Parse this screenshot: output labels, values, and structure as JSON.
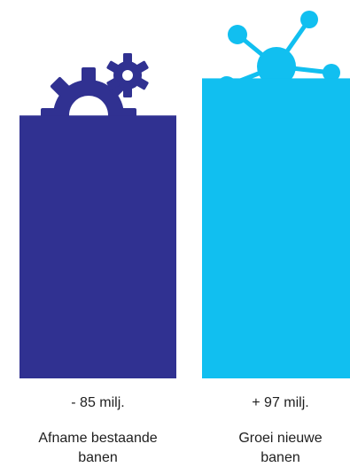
{
  "chart_data": {
    "type": "bar",
    "categories": [
      "Afname bestaande banen",
      "Groei nieuwe banen"
    ],
    "values": [
      85,
      97
    ],
    "value_labels": [
      "- 85 milj.",
      "+ 97 milj."
    ],
    "category_lines": [
      [
        "Afname bestaande",
        "banen"
      ],
      [
        "Groei nieuwe",
        "banen"
      ]
    ],
    "ylim": [
      0,
      106
    ],
    "colors": [
      "#303191",
      "#11bff0"
    ],
    "icons": [
      "gears-icon",
      "network-icon"
    ]
  }
}
